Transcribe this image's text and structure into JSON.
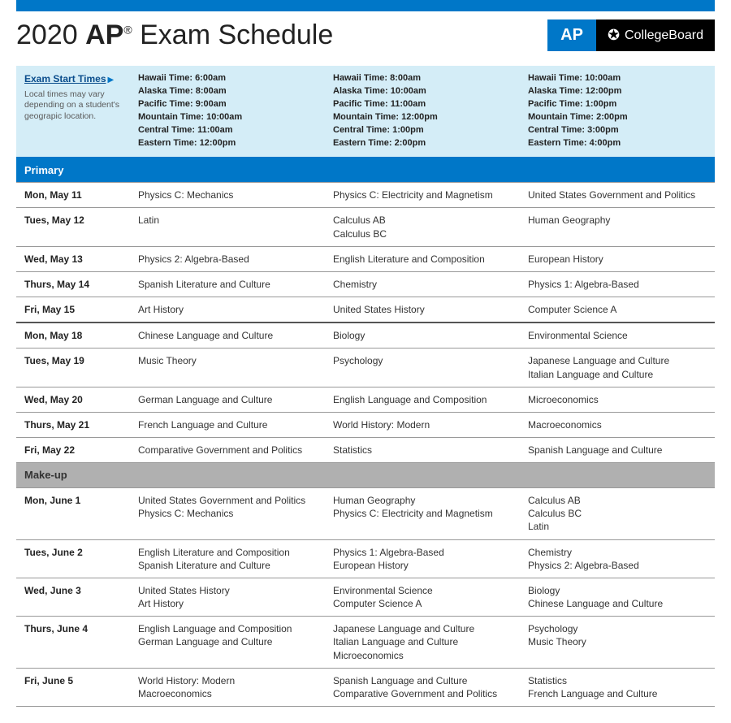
{
  "title": {
    "year": "2020",
    "ap": "AP",
    "reg": "®",
    "rest": "Exam Schedule"
  },
  "logo": {
    "ap": "AP",
    "cb": "CollegeBoard"
  },
  "startTimes": {
    "linkText": "Exam Start Times",
    "note": "Local times may vary depending on a student's geograpic location.",
    "cols": [
      [
        "Hawaii Time: 6:00am",
        "Alaska Time: 8:00am",
        "Pacific Time: 9:00am",
        "Mountain Time: 10:00am",
        "Central Time: 11:00am",
        "Eastern Time: 12:00pm"
      ],
      [
        "Hawaii Time: 8:00am",
        "Alaska Time: 10:00am",
        "Pacific Time: 11:00am",
        "Mountain Time: 12:00pm",
        "Central Time: 1:00pm",
        "Eastern Time: 2:00pm"
      ],
      [
        "Hawaii Time: 10:00am",
        "Alaska Time: 12:00pm",
        "Pacific Time: 1:00pm",
        "Mountain Time: 2:00pm",
        "Central Time: 3:00pm",
        "Eastern Time: 4:00pm"
      ]
    ]
  },
  "sections": {
    "primary": "Primary",
    "makeup": "Make-up"
  },
  "primary": [
    {
      "day": "Mon, May 11",
      "c": [
        [
          "Physics C: Mechanics"
        ],
        [
          "Physics C: Electricity and Magnetism"
        ],
        [
          "United States Government and Politics"
        ]
      ]
    },
    {
      "day": "Tues, May 12",
      "c": [
        [
          "Latin"
        ],
        [
          "Calculus AB",
          "Calculus BC"
        ],
        [
          "Human Geography"
        ]
      ]
    },
    {
      "day": "Wed, May 13",
      "c": [
        [
          "Physics 2: Algebra-Based"
        ],
        [
          "English Literature and Composition"
        ],
        [
          "European History"
        ]
      ]
    },
    {
      "day": "Thurs, May 14",
      "c": [
        [
          "Spanish Literature and Culture"
        ],
        [
          "Chemistry"
        ],
        [
          "Physics 1: Algebra-Based"
        ]
      ]
    },
    {
      "day": "Fri, May 15",
      "sep": true,
      "c": [
        [
          "Art History"
        ],
        [
          "United States History"
        ],
        [
          "Computer Science A"
        ]
      ]
    },
    {
      "day": "Mon, May 18",
      "c": [
        [
          "Chinese Language and Culture"
        ],
        [
          "Biology"
        ],
        [
          "Environmental Science"
        ]
      ]
    },
    {
      "day": "Tues, May 19",
      "c": [
        [
          "Music Theory"
        ],
        [
          "Psychology"
        ],
        [
          "Japanese Language and Culture",
          "Italian Language and Culture"
        ]
      ]
    },
    {
      "day": "Wed, May 20",
      "c": [
        [
          "German Language and Culture"
        ],
        [
          "English Language and Composition"
        ],
        [
          "Microeconomics"
        ]
      ]
    },
    {
      "day": "Thurs, May 21",
      "c": [
        [
          "French Language and Culture"
        ],
        [
          "World History: Modern"
        ],
        [
          "Macroeconomics"
        ]
      ]
    },
    {
      "day": "Fri, May 22",
      "c": [
        [
          "Comparative Government and Politics"
        ],
        [
          "Statistics"
        ],
        [
          "Spanish Language and Culture"
        ]
      ]
    }
  ],
  "makeup": [
    {
      "day": "Mon, June 1",
      "c": [
        [
          "United States Government and Politics",
          "Physics C: Mechanics"
        ],
        [
          "Human Geography",
          "Physics C: Electricity and Magnetism"
        ],
        [
          "Calculus AB",
          "Calculus BC",
          "Latin"
        ]
      ]
    },
    {
      "day": "Tues, June 2",
      "c": [
        [
          "English Literature and Composition",
          "Spanish Literature and Culture"
        ],
        [
          "Physics 1: Algebra-Based",
          "European History"
        ],
        [
          "Chemistry",
          "Physics 2: Algebra-Based"
        ]
      ]
    },
    {
      "day": "Wed, June 3",
      "c": [
        [
          "United States History",
          "Art History"
        ],
        [
          "Environmental Science",
          "Computer Science A"
        ],
        [
          "Biology",
          "Chinese Language and Culture"
        ]
      ]
    },
    {
      "day": "Thurs, June 4",
      "c": [
        [
          "English Language and Composition",
          "German Language and Culture"
        ],
        [
          "Japanese Language and Culture",
          "Italian Language and Culture",
          "Microeconomics"
        ],
        [
          "Psychology",
          "Music Theory"
        ]
      ]
    },
    {
      "day": "Fri, June 5",
      "c": [
        [
          "World History: Modern",
          "Macroeconomics"
        ],
        [
          "Spanish Language and Culture",
          "Comparative Government and Politics"
        ],
        [
          "Statistics",
          "French Language and Culture"
        ]
      ]
    }
  ]
}
